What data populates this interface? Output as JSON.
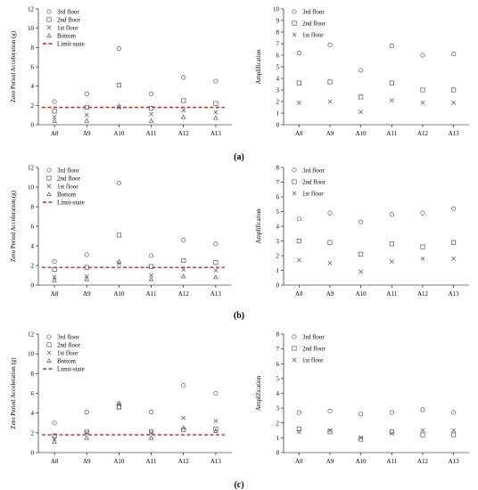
{
  "figure": {
    "panel_labels": [
      "(a)",
      "(b)",
      "(c)"
    ]
  },
  "chart_data": [
    {
      "type": "scatter",
      "panel": "(a)",
      "side": "left",
      "ylabel": "Zero Period Acceleration (g)",
      "categories": [
        "A8",
        "A9",
        "A10",
        "A11",
        "A12",
        "A13"
      ],
      "ylim": [
        0,
        12
      ],
      "yticks": [
        0,
        2,
        4,
        6,
        8,
        10,
        12
      ],
      "legend_position": "top-left",
      "series": [
        {
          "name": "3rd floor",
          "marker": "circle",
          "values": [
            2.4,
            3.2,
            7.9,
            3.2,
            4.9,
            4.5
          ]
        },
        {
          "name": "2nd floor",
          "marker": "square",
          "values": [
            1.4,
            1.8,
            4.1,
            1.7,
            2.5,
            2.2
          ]
        },
        {
          "name": "1st floor",
          "marker": "x",
          "values": [
            0.8,
            1.0,
            1.8,
            1.1,
            1.5,
            1.3
          ]
        },
        {
          "name": "Bottom",
          "marker": "triangle",
          "values": [
            0.4,
            0.4,
            1.9,
            0.4,
            0.8,
            0.7
          ]
        }
      ],
      "limit_state": {
        "name": "Limit-state",
        "value": 1.8,
        "color": "#d62020"
      }
    },
    {
      "type": "scatter",
      "panel": "(a)",
      "side": "right",
      "ylabel": "Amplification",
      "categories": [
        "A8",
        "A9",
        "A10",
        "A11",
        "A12",
        "A13"
      ],
      "ylim": [
        0,
        10
      ],
      "yticks": [
        0,
        1,
        2,
        3,
        4,
        5,
        6,
        7,
        8,
        9,
        10
      ],
      "legend_position": "top-left",
      "series": [
        {
          "name": "3rd floor",
          "marker": "circle",
          "values": [
            6.2,
            6.9,
            4.7,
            6.8,
            6.0,
            6.1
          ]
        },
        {
          "name": "2nd floor",
          "marker": "square",
          "values": [
            3.6,
            3.7,
            2.4,
            3.6,
            3.0,
            3.0
          ]
        },
        {
          "name": "1st floor",
          "marker": "x",
          "values": [
            1.9,
            2.0,
            1.1,
            2.1,
            1.9,
            1.9
          ]
        }
      ]
    },
    {
      "type": "scatter",
      "panel": "(b)",
      "side": "left",
      "ylabel": "Zero Period Acceleration (g)",
      "categories": [
        "A8",
        "A9",
        "A10",
        "A11",
        "A12",
        "A13"
      ],
      "ylim": [
        0,
        12
      ],
      "yticks": [
        0,
        2,
        4,
        6,
        8,
        10,
        12
      ],
      "legend_position": "top-left",
      "series": [
        {
          "name": "3rd floor",
          "marker": "circle",
          "values": [
            2.4,
            3.1,
            10.4,
            3.0,
            4.6,
            4.2
          ]
        },
        {
          "name": "2nd floor",
          "marker": "square",
          "values": [
            1.6,
            1.8,
            5.1,
            1.9,
            2.5,
            2.3
          ]
        },
        {
          "name": "1st floor",
          "marker": "x",
          "values": [
            0.8,
            0.9,
            2.2,
            1.0,
            1.6,
            1.5
          ]
        },
        {
          "name": "Bottom",
          "marker": "triangle",
          "values": [
            0.5,
            0.6,
            2.4,
            0.6,
            0.9,
            0.8
          ]
        }
      ],
      "limit_state": {
        "name": "Limit-state",
        "value": 1.8,
        "color": "#d62020"
      }
    },
    {
      "type": "scatter",
      "panel": "(b)",
      "side": "right",
      "ylabel": "Amplification",
      "categories": [
        "A8",
        "A9",
        "A10",
        "A11",
        "A12",
        "A13"
      ],
      "ylim": [
        0,
        8
      ],
      "yticks": [
        0,
        1,
        2,
        3,
        4,
        5,
        6,
        7,
        8
      ],
      "legend_position": "top-left",
      "series": [
        {
          "name": "3rd floor",
          "marker": "circle",
          "values": [
            4.5,
            4.9,
            4.3,
            4.8,
            4.9,
            5.2
          ]
        },
        {
          "name": "2nd floor",
          "marker": "square",
          "values": [
            3.0,
            2.9,
            2.1,
            2.8,
            2.6,
            2.9
          ]
        },
        {
          "name": "1st floor",
          "marker": "x",
          "values": [
            1.7,
            1.5,
            0.9,
            1.6,
            1.8,
            1.8
          ]
        }
      ]
    },
    {
      "type": "scatter",
      "panel": "(c)",
      "side": "left",
      "ylabel": "Zero Period Acceleration (g)",
      "categories": [
        "A8",
        "A9",
        "A10",
        "A11",
        "A12",
        "A13"
      ],
      "ylim": [
        0,
        12
      ],
      "yticks": [
        0,
        2,
        4,
        6,
        8,
        10,
        12
      ],
      "legend_position": "top-left",
      "series": [
        {
          "name": "3rd floor",
          "marker": "circle",
          "values": [
            3.0,
            4.1,
            4.6,
            4.1,
            6.8,
            6.0
          ]
        },
        {
          "name": "2nd floor",
          "marker": "square",
          "values": [
            1.7,
            2.1,
            4.6,
            2.1,
            2.3,
            2.4
          ]
        },
        {
          "name": "1st floor",
          "marker": "x",
          "values": [
            1.4,
            2.0,
            4.9,
            2.0,
            3.5,
            3.2
          ]
        },
        {
          "name": "Bottom",
          "marker": "triangle",
          "values": [
            1.1,
            1.5,
            5.0,
            1.5,
            2.5,
            2.2
          ]
        }
      ],
      "limit_state": {
        "name": "Limit-state",
        "value": 1.8,
        "color": "#d62020"
      }
    },
    {
      "type": "scatter",
      "panel": "(c)",
      "side": "right",
      "ylabel": "Amplification",
      "categories": [
        "A8",
        "A9",
        "A10",
        "A11",
        "A12",
        "A13"
      ],
      "ylim": [
        0,
        8
      ],
      "yticks": [
        0,
        1,
        2,
        3,
        4,
        5,
        6,
        7,
        8
      ],
      "legend_position": "top-left",
      "series": [
        {
          "name": "3rd floor",
          "marker": "circle",
          "values": [
            2.7,
            2.8,
            2.6,
            2.7,
            2.9,
            2.7
          ]
        },
        {
          "name": "2nd floor",
          "marker": "square",
          "values": [
            1.6,
            1.4,
            0.9,
            1.4,
            1.2,
            1.2
          ]
        },
        {
          "name": "1st floor",
          "marker": "x",
          "values": [
            1.4,
            1.5,
            1.0,
            1.3,
            1.5,
            1.5
          ]
        }
      ]
    }
  ]
}
